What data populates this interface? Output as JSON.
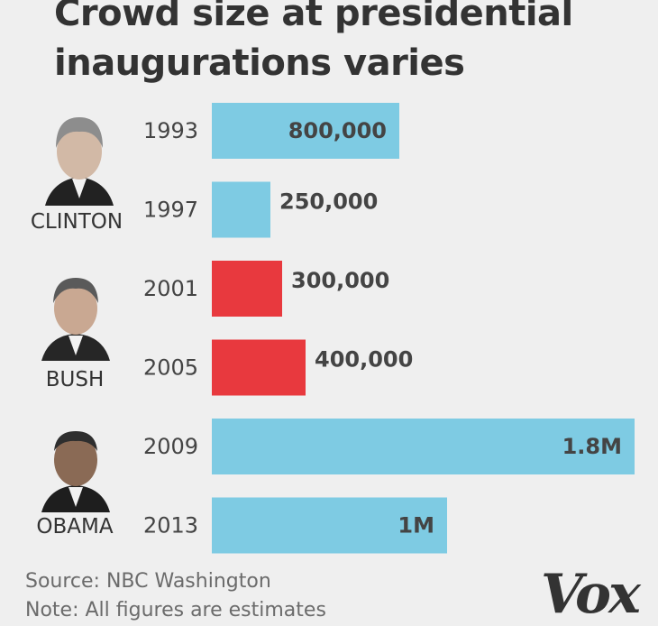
{
  "title": "Crowd size at presidential inaugurations varies",
  "colors": {
    "democrat": "#7ecbe3",
    "republican": "#e8393e",
    "text": "#444444"
  },
  "presidents": [
    {
      "name": "CLINTON",
      "party": "democrat"
    },
    {
      "name": "BUSH",
      "party": "republican"
    },
    {
      "name": "OBAMA",
      "party": "democrat"
    }
  ],
  "chart_data": {
    "type": "bar",
    "orientation": "horizontal",
    "title": "Crowd size at presidential inaugurations varies",
    "categories": [
      "1993",
      "1997",
      "2001",
      "2005",
      "2009",
      "2013"
    ],
    "values": [
      800000,
      250000,
      300000,
      400000,
      1800000,
      1000000
    ],
    "value_labels": [
      "800,000",
      "250,000",
      "300,000",
      "400,000",
      "1.8M",
      "1M"
    ],
    "bar_party": [
      "democrat",
      "democrat",
      "republican",
      "republican",
      "democrat",
      "democrat"
    ],
    "xlim": [
      0,
      1800000
    ],
    "grid": false
  },
  "footer": {
    "source": "Source: NBC Washington",
    "note": "Note: All figures are estimates"
  },
  "logo": "Vox"
}
